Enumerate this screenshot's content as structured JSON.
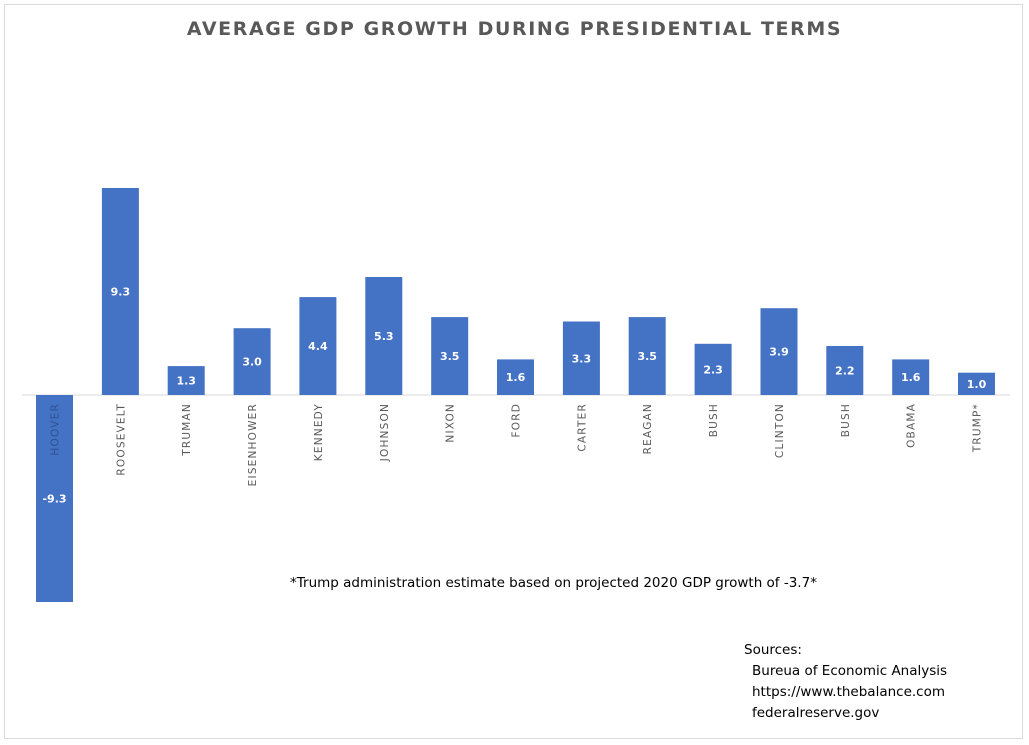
{
  "chart_data": {
    "type": "bar",
    "title": "AVERAGE GDP GROWTH DURING PRESIDENTIAL TERMS",
    "categories": [
      "HOOVER",
      "ROOSEVELT",
      "TRUMAN",
      "EISENHOWER",
      "KENNEDY",
      "JOHNSON",
      "NIXON",
      "FORD",
      "CARTER",
      "REAGAN",
      "BUSH",
      "CLINTON",
      "BUSH",
      "OBAMA",
      "TRUMP*"
    ],
    "values": [
      -9.3,
      9.3,
      1.3,
      3.0,
      4.4,
      5.3,
      3.5,
      1.6,
      3.3,
      3.5,
      2.3,
      3.9,
      2.2,
      1.6,
      1.0
    ],
    "data_labels": [
      "-9.3",
      "9.3",
      "1.3",
      "3.0",
      "4.4",
      "5.3",
      "3.5",
      "1.6",
      "3.3",
      "3.5",
      "2.3",
      "3.9",
      "2.2",
      "1.6",
      "1.0"
    ],
    "xlabel": "",
    "ylabel": "",
    "ylim": [
      -9.3,
      9.3
    ],
    "grid": false,
    "bar_color": "#4472c4",
    "label_color": "#ffffff"
  },
  "annotations": {
    "note": "*Trump administration estimate based on projected 2020 GDP growth of -3.7*",
    "sources_title": "Sources:",
    "sources": [
      "Bureua of Economic Analysis",
      "https://www.thebalance.com",
      "federalreserve.gov"
    ]
  }
}
